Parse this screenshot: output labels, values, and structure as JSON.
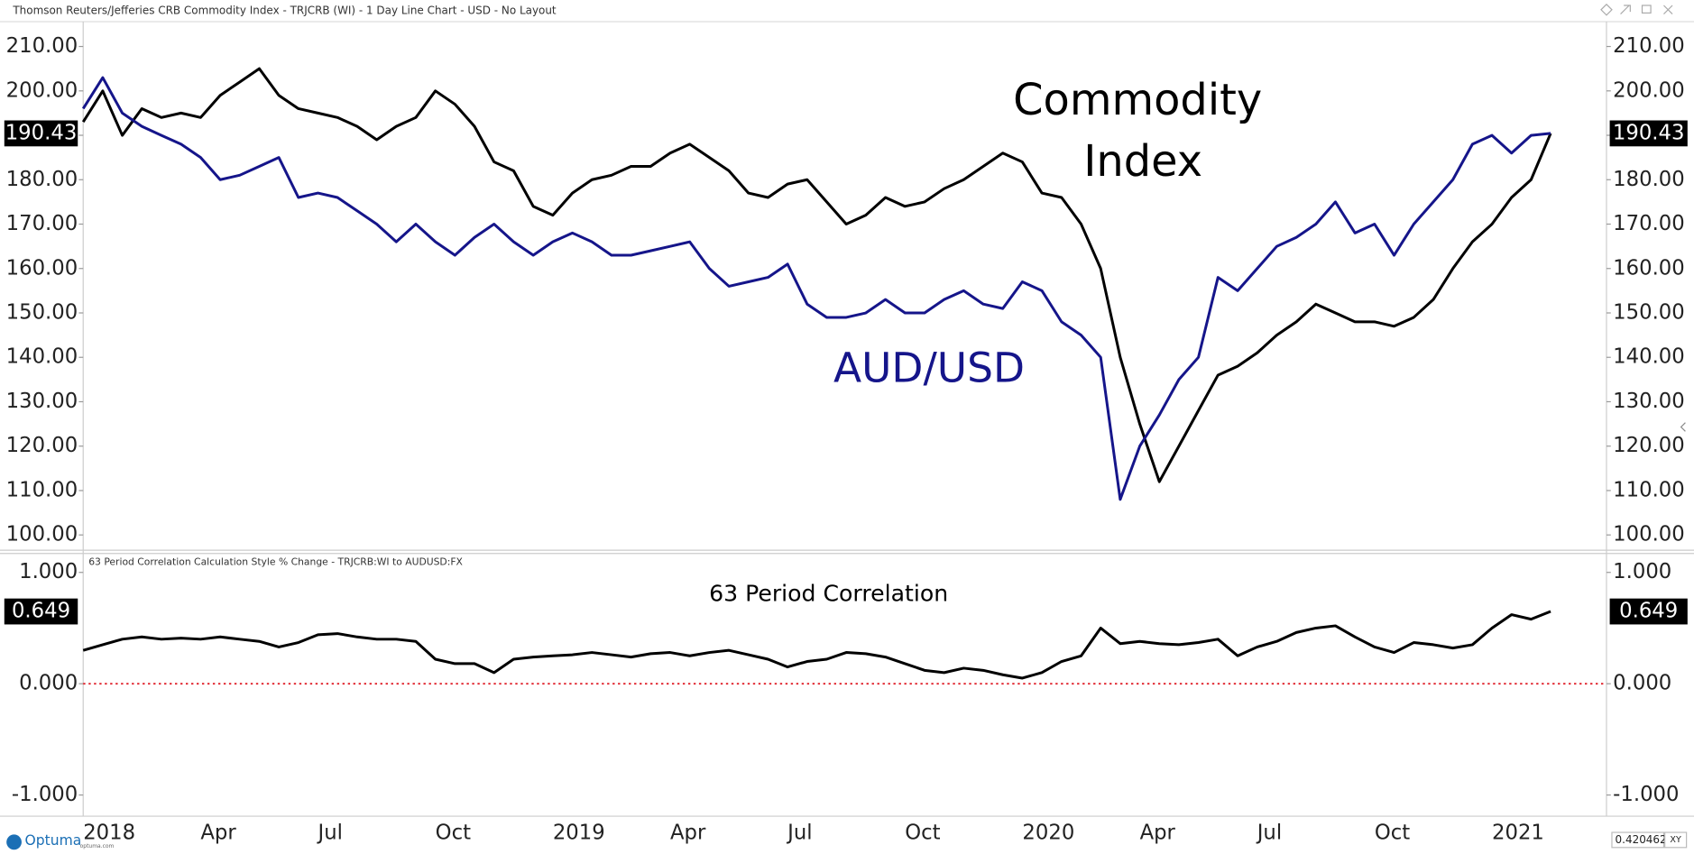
{
  "window": {
    "title": "Thomson Reuters/Jefferies CRB Commodity Index - TRJCRB (WI) - 1 Day Line Chart - USD - No Layout"
  },
  "chart_data": [
    {
      "type": "line",
      "annotations": [
        "Commodity",
        "Index",
        "AUD/USD"
      ],
      "ylim": [
        96.8,
        215.6
      ],
      "yticks": [
        {
          "value": 100,
          "label": "100.00"
        },
        {
          "value": 110,
          "label": "110.00"
        },
        {
          "value": 120,
          "label": "120.00"
        },
        {
          "value": 130,
          "label": "130.00"
        },
        {
          "value": 140,
          "label": "140.00"
        },
        {
          "value": 150,
          "label": "150.00"
        },
        {
          "value": 160,
          "label": "160.00"
        },
        {
          "value": 170,
          "label": "170.00"
        },
        {
          "value": 180,
          "label": "180.00"
        },
        {
          "value": 190,
          "label": "190.00"
        },
        {
          "value": 200,
          "label": "200.00"
        },
        {
          "value": 210,
          "label": "210.00"
        }
      ],
      "last_value_label": true,
      "series": [
        {
          "name": "Commodity Index",
          "color": "#000000",
          "values": [
            193,
            200,
            190,
            196,
            194,
            195,
            194,
            199,
            202,
            205,
            199,
            196,
            195,
            194,
            192,
            189,
            192,
            194,
            200,
            197,
            192,
            184,
            182,
            174,
            172,
            177,
            180,
            181,
            183,
            183,
            186,
            188,
            185,
            182,
            177,
            176,
            179,
            180,
            175,
            170,
            172,
            176,
            174,
            175,
            178,
            180,
            183,
            186,
            184,
            177,
            176,
            170,
            160,
            140,
            125,
            112,
            120,
            128,
            136,
            138,
            141,
            145,
            148,
            152,
            150,
            148,
            148,
            147,
            149,
            153,
            160,
            166,
            170,
            176,
            180,
            190.43
          ]
        },
        {
          "name": "AUD/USD",
          "color": "#15158a",
          "values": [
            196,
            203,
            195,
            192,
            190,
            188,
            185,
            180,
            181,
            183,
            185,
            176,
            177,
            176,
            173,
            170,
            166,
            170,
            166,
            163,
            167,
            170,
            166,
            163,
            166,
            168,
            166,
            163,
            163,
            164,
            165,
            166,
            160,
            156,
            157,
            158,
            161,
            152,
            149,
            149,
            150,
            153,
            150,
            150,
            153,
            155,
            152,
            151,
            157,
            155,
            148,
            145,
            140,
            108,
            120,
            127,
            135,
            140,
            158,
            155,
            160,
            165,
            167,
            170,
            175,
            168,
            170,
            163,
            170,
            175,
            180,
            188,
            190,
            186,
            190,
            190.43
          ]
        }
      ]
    },
    {
      "type": "line",
      "subtitle": "63 Period Correlation Calculation Style % Change - TRJCRB:WI to AUDUSD:FX",
      "annotations": [
        "63 Period Correlation"
      ],
      "categories": [
        "2018",
        null,
        null,
        null,
        null,
        null,
        "Apr",
        null,
        null,
        null,
        null,
        null,
        "Jul",
        null,
        null,
        null,
        null,
        null,
        "Oct",
        null,
        null,
        null,
        null,
        null,
        "2019",
        null,
        null,
        null,
        null,
        null,
        "Apr",
        null,
        null,
        null,
        null,
        null,
        "Jul",
        null,
        null,
        null,
        null,
        null,
        "Oct",
        null,
        null,
        null,
        null,
        null,
        "2020",
        null,
        null,
        null,
        null,
        null,
        "Apr",
        null,
        null,
        null,
        null,
        null,
        "Jul",
        null,
        null,
        null,
        null,
        null,
        "Oct",
        null,
        null,
        null,
        null,
        null,
        "2021",
        null,
        null,
        null
      ],
      "ylim": [
        -1.19,
        1.17
      ],
      "yticks": [
        {
          "value": -1,
          "label": "-1.000"
        },
        {
          "value": 0,
          "label": "0.000"
        },
        {
          "value": 1,
          "label": "1.000"
        }
      ],
      "last_value_label": true,
      "reference_line": {
        "value": 0,
        "color": "#e0202a"
      },
      "series": [
        {
          "name": "63 Period Correlation",
          "color": "#000000",
          "values": [
            0.3,
            0.35,
            0.4,
            0.42,
            0.4,
            0.41,
            0.4,
            0.42,
            0.4,
            0.38,
            0.33,
            0.37,
            0.44,
            0.45,
            0.42,
            0.4,
            0.4,
            0.38,
            0.22,
            0.18,
            0.18,
            0.1,
            0.22,
            0.24,
            0.25,
            0.26,
            0.28,
            0.26,
            0.24,
            0.27,
            0.28,
            0.25,
            0.28,
            0.3,
            0.26,
            0.22,
            0.15,
            0.2,
            0.22,
            0.28,
            0.27,
            0.24,
            0.18,
            0.12,
            0.1,
            0.14,
            0.12,
            0.08,
            0.05,
            0.1,
            0.2,
            0.25,
            0.5,
            0.36,
            0.38,
            0.36,
            0.35,
            0.37,
            0.4,
            0.25,
            0.33,
            0.38,
            0.46,
            0.5,
            0.52,
            0.42,
            0.33,
            0.28,
            0.37,
            0.35,
            0.32,
            0.35,
            0.5,
            0.62,
            0.58,
            0.649
          ]
        }
      ]
    }
  ],
  "footer": {
    "brand": "Optuma",
    "brand_url": "optuma.com",
    "cursor_value": "0.4204621",
    "mode": "XY"
  }
}
